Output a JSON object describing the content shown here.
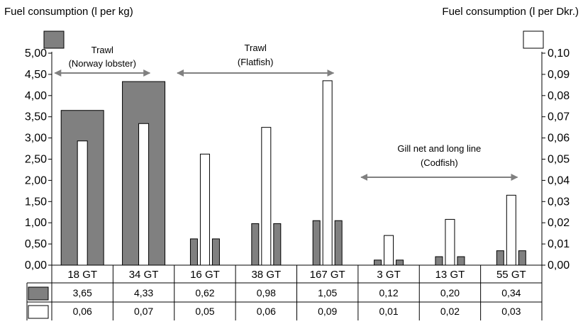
{
  "chart_data": {
    "type": "bar",
    "ylabel_left": "Fuel consumption (l per kg)",
    "ylabel_right": "Fuel consumption (l per Dkr.)",
    "categories": [
      "18 GT",
      "34 GT",
      "16 GT",
      "38 GT",
      "167 GT",
      "3 GT",
      "13 GT",
      "55 GT"
    ],
    "series": [
      {
        "axis": "left",
        "color": "#808080",
        "values": [
          3.65,
          4.33,
          0.62,
          0.98,
          1.05,
          0.12,
          0.2,
          0.34
        ],
        "value_labels": [
          "3,65",
          "4,33",
          "0,62",
          "0,98",
          "1,05",
          "0,12",
          "0,20",
          "0,34"
        ]
      },
      {
        "axis": "right",
        "color": "#ffffff",
        "values": [
          0.0586,
          0.0668,
          0.0524,
          0.065,
          0.087,
          0.014,
          0.0216,
          0.033
        ],
        "value_labels": [
          "0,06",
          "0,07",
          "0,05",
          "0,06",
          "0,09",
          "0,01",
          "0,02",
          "0,03"
        ]
      }
    ],
    "ylim_left": [
      0,
      5
    ],
    "ylim_right": [
      0,
      0.1
    ],
    "yticks_left": [
      "0,00",
      "0,50",
      "1,00",
      "1,50",
      "2,00",
      "2,50",
      "3,00",
      "3,50",
      "4,00",
      "4,50",
      "5,00"
    ],
    "yticks_right": [
      "0,00",
      "0,01",
      "0,02",
      "0,03",
      "0,04",
      "0,05",
      "0,06",
      "0,07",
      "0,08",
      "0,09",
      "0,10"
    ],
    "grid": false,
    "legend": "data table below the x axis",
    "annotations": [
      {
        "lines": [
          "Trawl",
          "(Norway lobster)"
        ],
        "from_category": 0,
        "to_category": 1
      },
      {
        "lines": [
          "Trawl",
          "(Flatfish)"
        ],
        "from_category": 2,
        "to_category": 4
      },
      {
        "lines": [
          "Gill net and long line",
          "(Codfish)"
        ],
        "from_category": 5,
        "to_category": 7
      }
    ]
  }
}
